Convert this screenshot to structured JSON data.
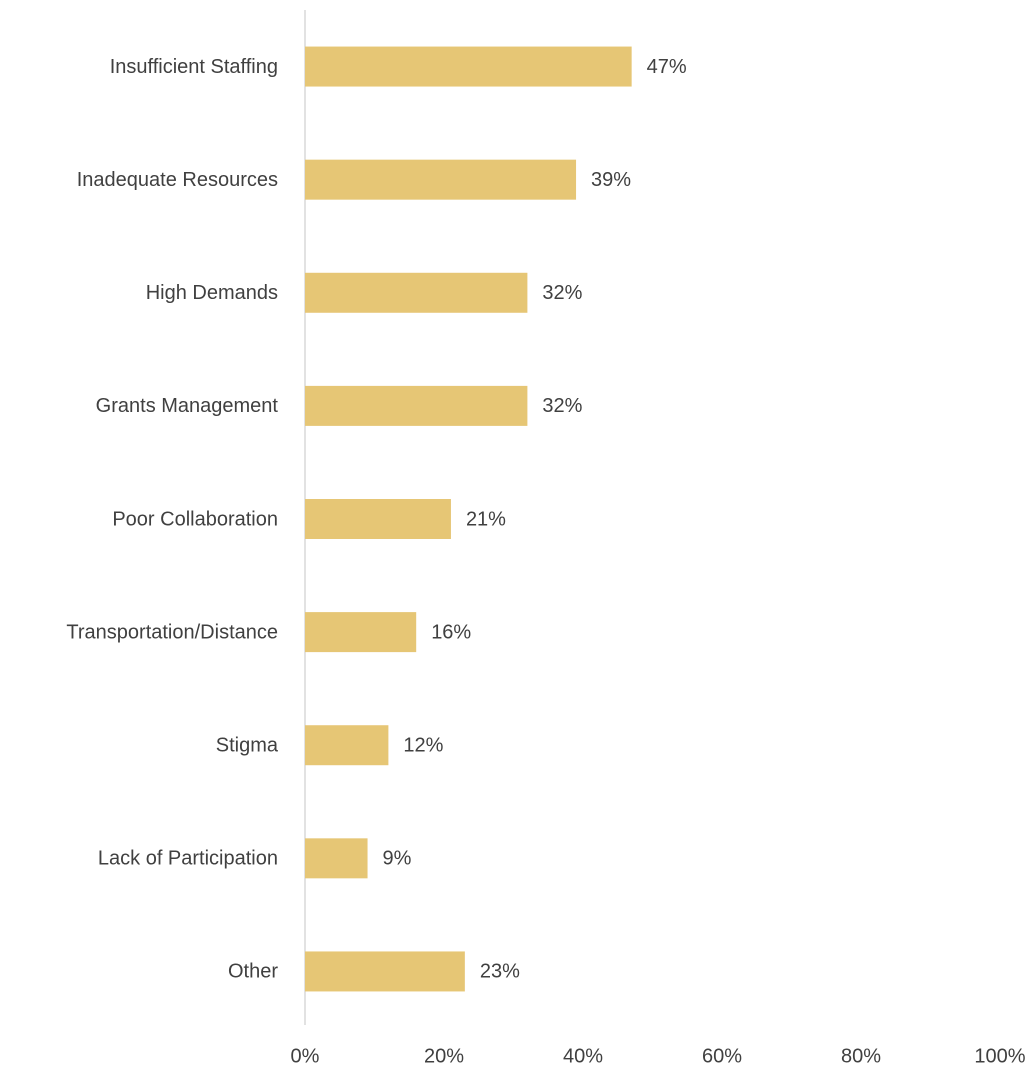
{
  "chart_data": {
    "type": "hbar",
    "categories": [
      "Insufficient Staffing",
      "Inadequate Resources",
      "High Demands",
      "Grants Management",
      "Poor Collaboration",
      "Transportation/Distance",
      "Stigma",
      "Lack of Participation",
      "Other"
    ],
    "values": [
      47,
      39,
      32,
      32,
      21,
      16,
      12,
      9,
      23
    ],
    "value_labels": [
      "47%",
      "39%",
      "32%",
      "32%",
      "21%",
      "16%",
      "12%",
      "9%",
      "23%"
    ],
    "color": "#e6c675",
    "xlim": [
      0,
      100
    ],
    "xticks": [
      {
        "value": 0,
        "label": "0%"
      },
      {
        "value": 20,
        "label": "20%"
      },
      {
        "value": 40,
        "label": "40%"
      },
      {
        "value": 60,
        "label": "60%"
      },
      {
        "value": 80,
        "label": "80%"
      },
      {
        "value": 100,
        "label": "100%"
      }
    ],
    "grid": false
  }
}
